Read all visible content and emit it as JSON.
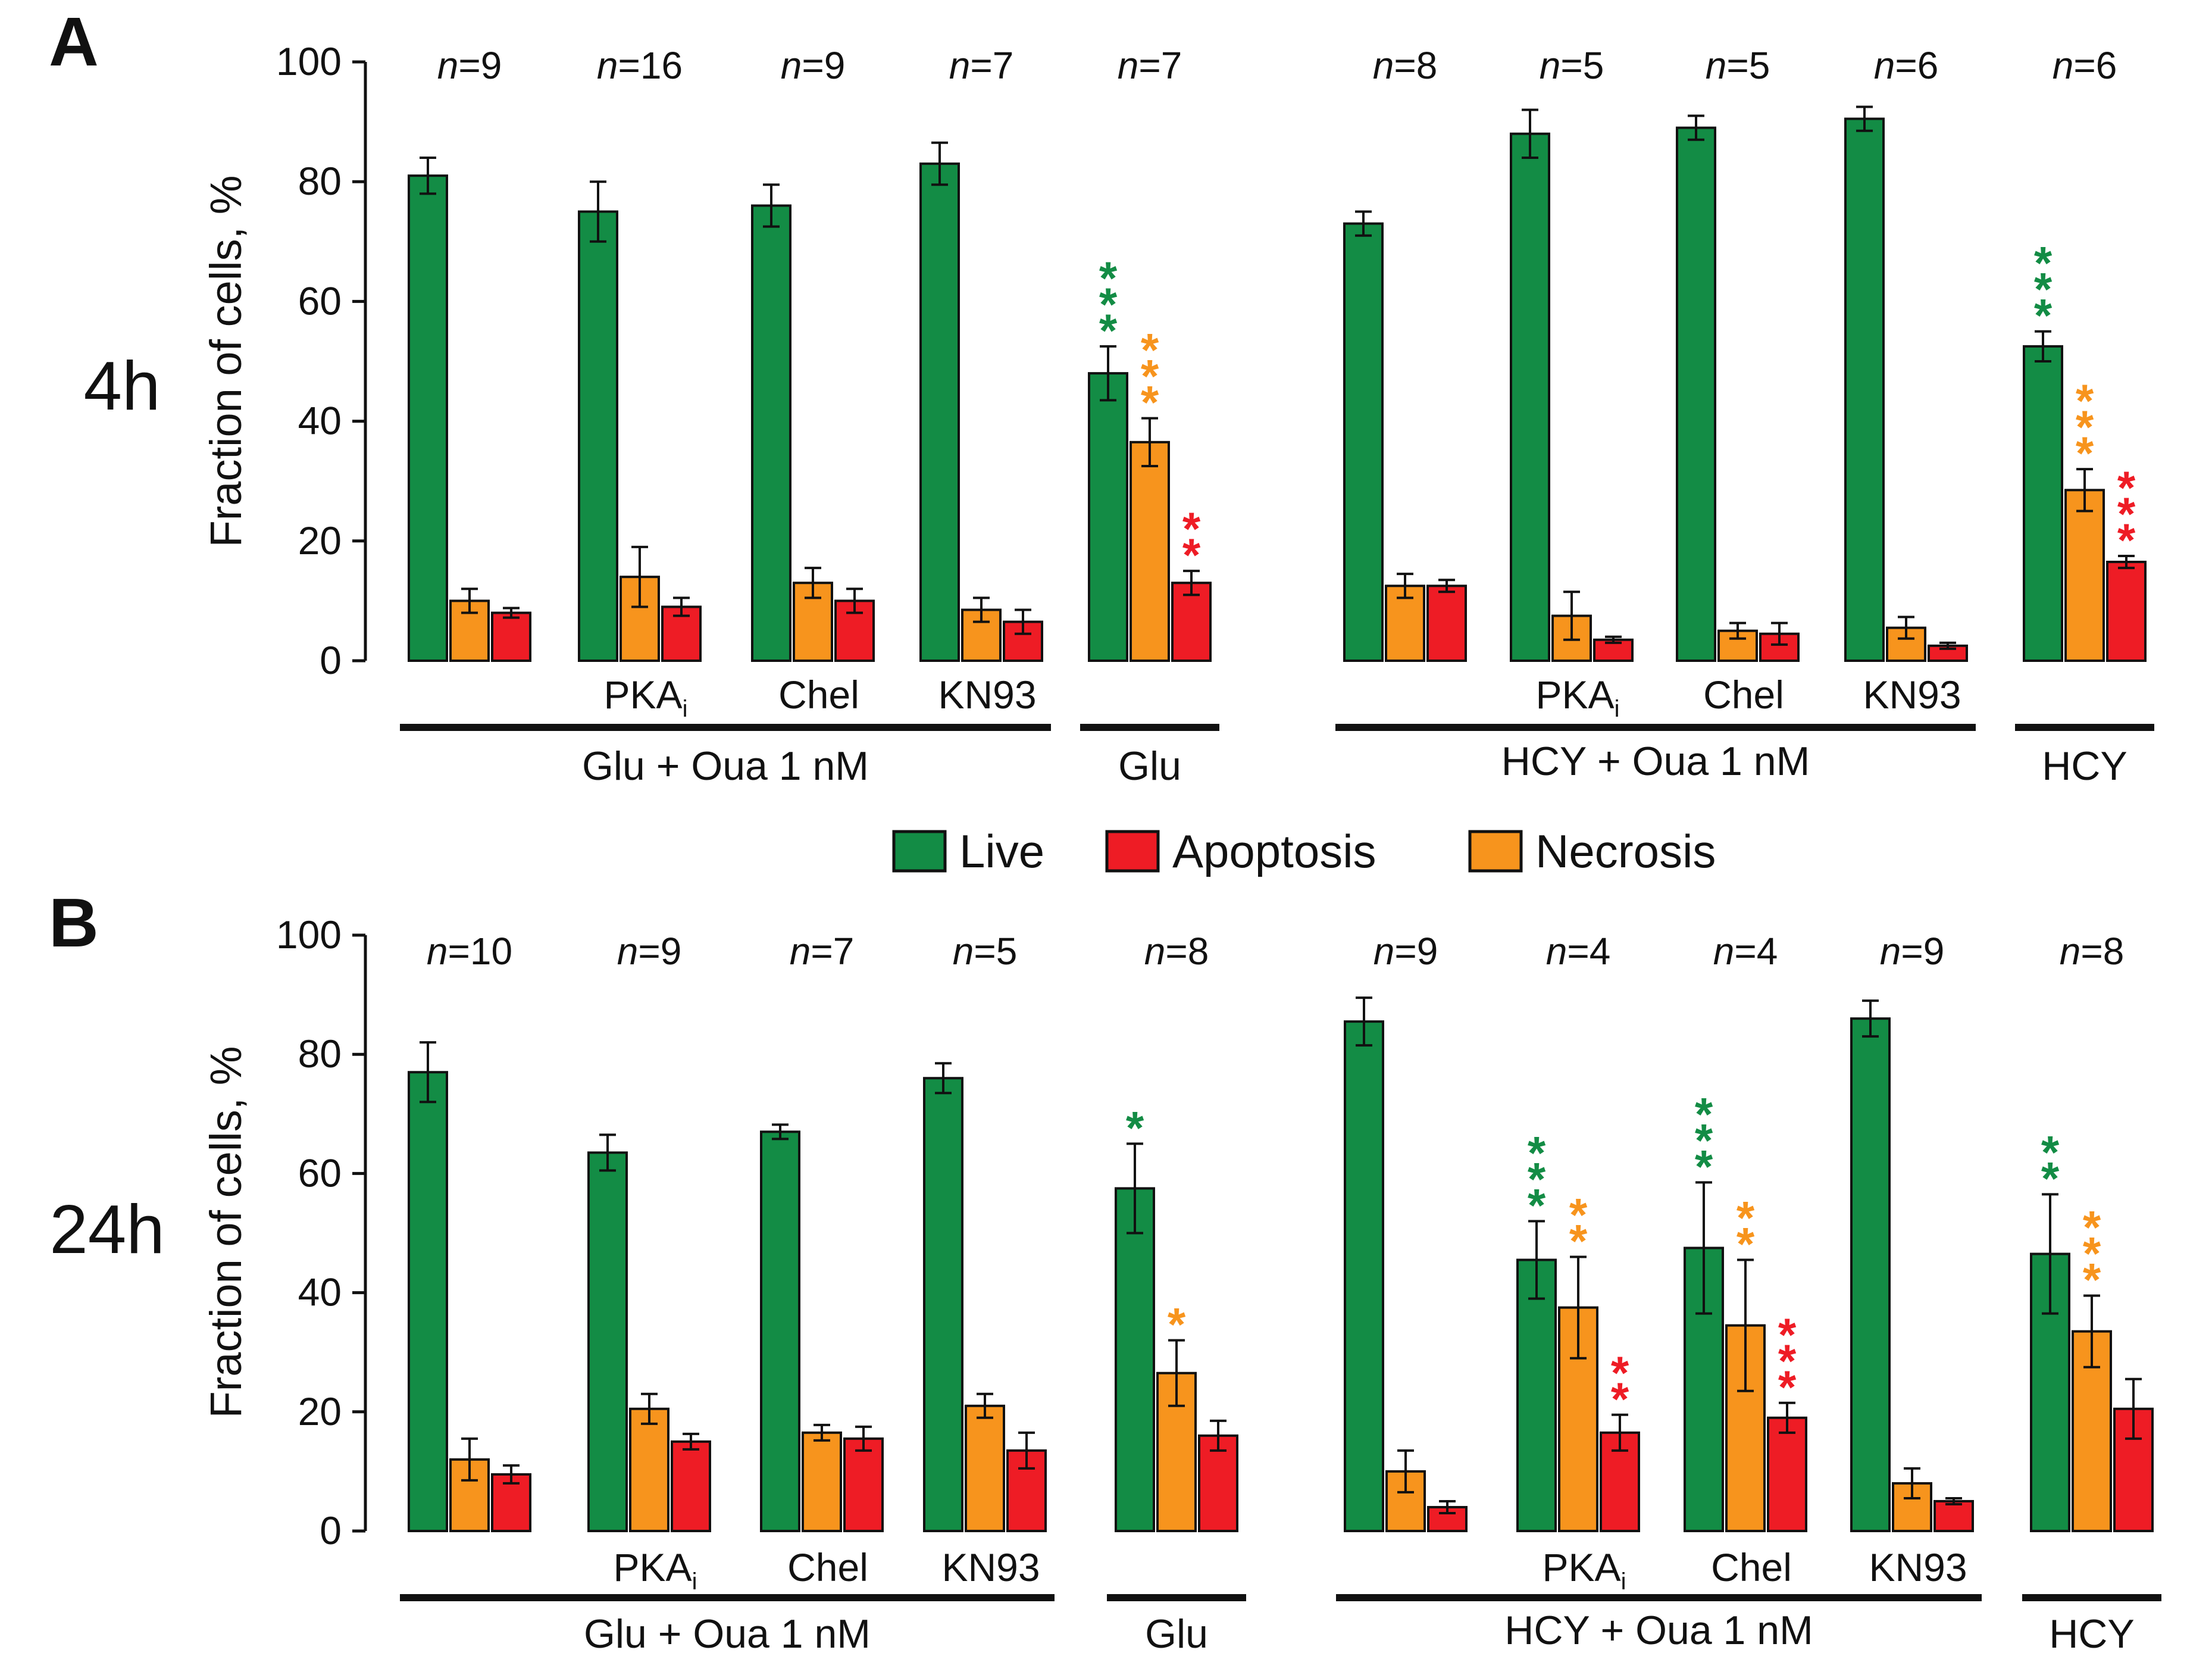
{
  "figure": {
    "legend": [
      {
        "key": "live",
        "label": "Live",
        "color": "#138c45"
      },
      {
        "key": "apoptosis",
        "label": "Apoptosis",
        "color": "#ee1c25"
      },
      {
        "key": "necrosis",
        "label": "Necrosis",
        "color": "#f7941d"
      }
    ]
  },
  "chart_data": [
    {
      "type": "bar",
      "panel": "A",
      "row_label": "4h",
      "ylabel": "Fraction of cells, %",
      "ylim": [
        0,
        100
      ],
      "yticks": [
        0,
        20,
        40,
        60,
        80,
        100
      ],
      "series_order": [
        "Live",
        "Necrosis",
        "Apoptosis"
      ],
      "groups": [
        {
          "label": "Glu + Oua 1 nM",
          "first": 0,
          "last": 3
        },
        {
          "label": "Glu",
          "first": 4,
          "last": 4
        },
        {
          "label": "HCY + Oua 1 nM",
          "first": 5,
          "last": 8
        },
        {
          "label": "HCY",
          "first": 9,
          "last": 9
        }
      ],
      "conditions": [
        {
          "n_prefix": "n",
          "n_value": "=9",
          "label": "",
          "sub": "",
          "bars": [
            {
              "series": "Live",
              "value": 81,
              "err": 3,
              "stars": ""
            },
            {
              "series": "Necrosis",
              "value": 10,
              "err": 2,
              "stars": ""
            },
            {
              "series": "Apoptosis",
              "value": 8,
              "err": 0.8,
              "stars": ""
            }
          ]
        },
        {
          "n_prefix": "n",
          "n_value": "=16",
          "label": "PKA",
          "sub": "i",
          "bars": [
            {
              "series": "Live",
              "value": 75,
              "err": 5,
              "stars": ""
            },
            {
              "series": "Necrosis",
              "value": 14,
              "err": 5,
              "stars": ""
            },
            {
              "series": "Apoptosis",
              "value": 9,
              "err": 1.5,
              "stars": ""
            }
          ]
        },
        {
          "n_prefix": "n",
          "n_value": "=9",
          "label": "Chel",
          "sub": "",
          "bars": [
            {
              "series": "Live",
              "value": 76,
              "err": 3.5,
              "stars": ""
            },
            {
              "series": "Necrosis",
              "value": 13,
              "err": 2.5,
              "stars": ""
            },
            {
              "series": "Apoptosis",
              "value": 10,
              "err": 2,
              "stars": ""
            }
          ]
        },
        {
          "n_prefix": "n",
          "n_value": "=7",
          "label": "KN93",
          "sub": "",
          "bars": [
            {
              "series": "Live",
              "value": 83,
              "err": 3.5,
              "stars": ""
            },
            {
              "series": "Necrosis",
              "value": 8.5,
              "err": 2,
              "stars": ""
            },
            {
              "series": "Apoptosis",
              "value": 6.5,
              "err": 2,
              "stars": ""
            }
          ]
        },
        {
          "n_prefix": "n",
          "n_value": "=7",
          "label": "",
          "sub": "",
          "bars": [
            {
              "series": "Live",
              "value": 48,
              "err": 4.5,
              "stars": "***"
            },
            {
              "series": "Necrosis",
              "value": 36.5,
              "err": 4,
              "stars": "***"
            },
            {
              "series": "Apoptosis",
              "value": 13,
              "err": 2,
              "stars": "**"
            }
          ]
        },
        {
          "n_prefix": "n",
          "n_value": "=8",
          "label": "",
          "sub": "",
          "bars": [
            {
              "series": "Live",
              "value": 73,
              "err": 2,
              "stars": ""
            },
            {
              "series": "Necrosis",
              "value": 12.5,
              "err": 2,
              "stars": ""
            },
            {
              "series": "Apoptosis",
              "value": 12.5,
              "err": 1,
              "stars": ""
            }
          ]
        },
        {
          "n_prefix": "n",
          "n_value": "=5",
          "label": "PKA",
          "sub": "i",
          "bars": [
            {
              "series": "Live",
              "value": 88,
              "err": 4,
              "stars": ""
            },
            {
              "series": "Necrosis",
              "value": 7.5,
              "err": 4,
              "stars": ""
            },
            {
              "series": "Apoptosis",
              "value": 3.5,
              "err": 0.5,
              "stars": ""
            }
          ]
        },
        {
          "n_prefix": "n",
          "n_value": "=5",
          "label": "Chel",
          "sub": "",
          "bars": [
            {
              "series": "Live",
              "value": 89,
              "err": 2,
              "stars": ""
            },
            {
              "series": "Necrosis",
              "value": 5,
              "err": 1.3,
              "stars": ""
            },
            {
              "series": "Apoptosis",
              "value": 4.5,
              "err": 1.8,
              "stars": ""
            }
          ]
        },
        {
          "n_prefix": "n",
          "n_value": "=6",
          "label": "KN93",
          "sub": "",
          "bars": [
            {
              "series": "Live",
              "value": 90.5,
              "err": 2,
              "stars": ""
            },
            {
              "series": "Necrosis",
              "value": 5.5,
              "err": 1.8,
              "stars": ""
            },
            {
              "series": "Apoptosis",
              "value": 2.5,
              "err": 0.5,
              "stars": ""
            }
          ]
        },
        {
          "n_prefix": "n",
          "n_value": "=6",
          "label": "",
          "sub": "",
          "bars": [
            {
              "series": "Live",
              "value": 52.5,
              "err": 2.5,
              "stars": "***"
            },
            {
              "series": "Necrosis",
              "value": 28.5,
              "err": 3.5,
              "stars": "***"
            },
            {
              "series": "Apoptosis",
              "value": 16.5,
              "err": 1,
              "stars": "***"
            }
          ]
        }
      ]
    },
    {
      "type": "bar",
      "panel": "B",
      "row_label": "24h",
      "ylabel": "Fraction of cells, %",
      "ylim": [
        0,
        100
      ],
      "yticks": [
        0,
        20,
        40,
        60,
        80,
        100
      ],
      "series_order": [
        "Live",
        "Necrosis",
        "Apoptosis"
      ],
      "groups": [
        {
          "label": "Glu + Oua 1 nM",
          "first": 0,
          "last": 3
        },
        {
          "label": "Glu",
          "first": 4,
          "last": 4
        },
        {
          "label": "HCY + Oua 1 nM",
          "first": 5,
          "last": 8
        },
        {
          "label": "HCY",
          "first": 9,
          "last": 9
        }
      ],
      "conditions": [
        {
          "n_prefix": "n",
          "n_value": "=10",
          "label": "",
          "sub": "",
          "bars": [
            {
              "series": "Live",
              "value": 77,
              "err": 5,
              "stars": ""
            },
            {
              "series": "Necrosis",
              "value": 12,
              "err": 3.5,
              "stars": ""
            },
            {
              "series": "Apoptosis",
              "value": 9.5,
              "err": 1.5,
              "stars": ""
            }
          ]
        },
        {
          "n_prefix": "n",
          "n_value": "=9",
          "label": "PKA",
          "sub": "i",
          "bars": [
            {
              "series": "Live",
              "value": 63.5,
              "err": 3,
              "stars": ""
            },
            {
              "series": "Necrosis",
              "value": 20.5,
              "err": 2.5,
              "stars": ""
            },
            {
              "series": "Apoptosis",
              "value": 15,
              "err": 1.3,
              "stars": ""
            }
          ]
        },
        {
          "n_prefix": "n",
          "n_value": "=7",
          "label": "Chel",
          "sub": "",
          "bars": [
            {
              "series": "Live",
              "value": 67,
              "err": 1.2,
              "stars": ""
            },
            {
              "series": "Necrosis",
              "value": 16.5,
              "err": 1.3,
              "stars": ""
            },
            {
              "series": "Apoptosis",
              "value": 15.5,
              "err": 2,
              "stars": ""
            }
          ]
        },
        {
          "n_prefix": "n",
          "n_value": "=5",
          "label": "KN93",
          "sub": "",
          "bars": [
            {
              "series": "Live",
              "value": 76,
              "err": 2.5,
              "stars": ""
            },
            {
              "series": "Necrosis",
              "value": 21,
              "err": 2,
              "stars": ""
            },
            {
              "series": "Apoptosis",
              "value": 13.5,
              "err": 3,
              "stars": ""
            }
          ]
        },
        {
          "n_prefix": "n",
          "n_value": "=8",
          "label": "",
          "sub": "",
          "bars": [
            {
              "series": "Live",
              "value": 57.5,
              "err": 7.5,
              "stars": "*"
            },
            {
              "series": "Necrosis",
              "value": 26.5,
              "err": 5.5,
              "stars": "*"
            },
            {
              "series": "Apoptosis",
              "value": 16,
              "err": 2.5,
              "stars": ""
            }
          ]
        },
        {
          "n_prefix": "n",
          "n_value": "=9",
          "label": "",
          "sub": "",
          "bars": [
            {
              "series": "Live",
              "value": 85.5,
              "err": 4,
              "stars": ""
            },
            {
              "series": "Necrosis",
              "value": 10,
              "err": 3.5,
              "stars": ""
            },
            {
              "series": "Apoptosis",
              "value": 4,
              "err": 1,
              "stars": ""
            }
          ]
        },
        {
          "n_prefix": "n",
          "n_value": "=4",
          "label": "PKA",
          "sub": "i",
          "bars": [
            {
              "series": "Live",
              "value": 45.5,
              "err": 6.5,
              "stars": "***"
            },
            {
              "series": "Necrosis",
              "value": 37.5,
              "err": 8.5,
              "stars": "**"
            },
            {
              "series": "Apoptosis",
              "value": 16.5,
              "err": 3,
              "stars": "**"
            }
          ]
        },
        {
          "n_prefix": "n",
          "n_value": "=4",
          "label": "Chel",
          "sub": "",
          "bars": [
            {
              "series": "Live",
              "value": 47.5,
              "err": 11,
              "stars": "***"
            },
            {
              "series": "Necrosis",
              "value": 34.5,
              "err": 11,
              "stars": "**"
            },
            {
              "series": "Apoptosis",
              "value": 19,
              "err": 2.5,
              "stars": "***"
            }
          ]
        },
        {
          "n_prefix": "n",
          "n_value": "=9",
          "label": "KN93",
          "sub": "",
          "bars": [
            {
              "series": "Live",
              "value": 86,
              "err": 3,
              "stars": ""
            },
            {
              "series": "Necrosis",
              "value": 8,
              "err": 2.5,
              "stars": ""
            },
            {
              "series": "Apoptosis",
              "value": 5,
              "err": 0.5,
              "stars": ""
            }
          ]
        },
        {
          "n_prefix": "n",
          "n_value": "=8",
          "label": "",
          "sub": "",
          "bars": [
            {
              "series": "Live",
              "value": 46.5,
              "err": 10,
              "stars": "**"
            },
            {
              "series": "Necrosis",
              "value": 33.5,
              "err": 6,
              "stars": "***"
            },
            {
              "series": "Apoptosis",
              "value": 20.5,
              "err": 5,
              "stars": ""
            }
          ]
        }
      ]
    }
  ]
}
